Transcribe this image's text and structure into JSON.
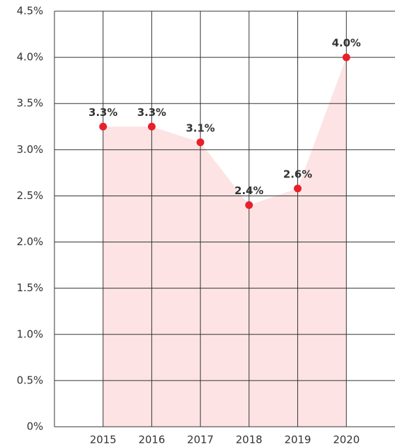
{
  "chart_data": {
    "type": "line",
    "categories": [
      "2015",
      "2016",
      "2017",
      "2018",
      "2019",
      "2020"
    ],
    "values": [
      3.25,
      3.25,
      3.08,
      2.4,
      2.58,
      4.0
    ],
    "value_labels": [
      "3.3%",
      "3.3%",
      "3.1%",
      "2.4%",
      "2.6%",
      "4.0%"
    ],
    "color": "#e8202a",
    "fill": "#fde3e3",
    "ylim": [
      0,
      4.5
    ],
    "yticks": [
      {
        "value": 0,
        "label": "0%"
      },
      {
        "value": 0.5,
        "label": "0.5%"
      },
      {
        "value": 1,
        "label": "1.0%"
      },
      {
        "value": 1.5,
        "label": "1.5%"
      },
      {
        "value": 2,
        "label": "2.0%"
      },
      {
        "value": 2.5,
        "label": "2.5%"
      },
      {
        "value": 3,
        "label": "3.0%"
      },
      {
        "value": 3.5,
        "label": "3.5%"
      },
      {
        "value": 4,
        "label": "4.0%"
      },
      {
        "value": 4.5,
        "label": "4.5%"
      }
    ],
    "grid": true
  }
}
